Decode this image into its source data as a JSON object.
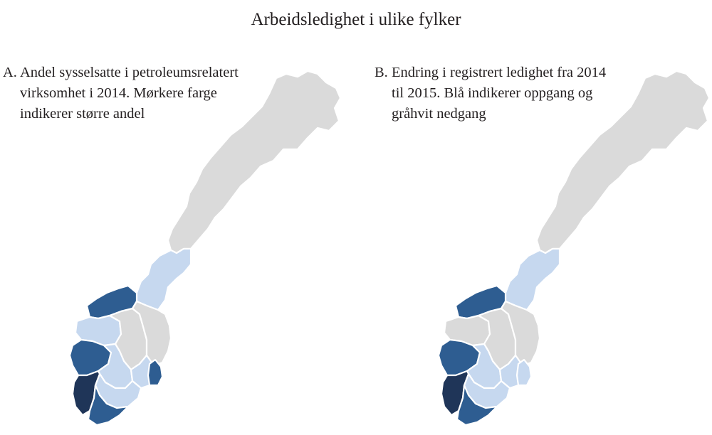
{
  "title": "Arbeidsledighet i ulike fylker",
  "colors": {
    "grey": "#dadada",
    "light": "#c6d8ef",
    "dark": "#2e5d91",
    "darkest": "#1f3558"
  },
  "panels": [
    {
      "letter": "A.",
      "caption_lines": [
        "Andel sysselsatte i petroleumsrelatert",
        "virksomhet i 2014. Mørkere farge",
        "indikerer større andel"
      ],
      "county_colors": {
        "north": "grey",
        "trondelag": "light",
        "more": "dark",
        "hedmark": "grey",
        "oppland": "grey",
        "sognefjordane": "light",
        "hordaland": "dark",
        "buskerud": "light",
        "oslo": "light",
        "ostfold": "dark",
        "telemark": "light",
        "rogaland": "darkest",
        "agder": "dark"
      }
    },
    {
      "letter": "B.",
      "caption_lines": [
        "Endring i registrert ledighet fra 2014",
        "til 2015. Blå indikerer oppgang og",
        "gråhvit nedgang"
      ],
      "county_colors": {
        "north": "grey",
        "trondelag": "light",
        "more": "dark",
        "hedmark": "grey",
        "oppland": "grey",
        "sognefjordane": "grey",
        "hordaland": "dark",
        "buskerud": "light",
        "oslo": "light",
        "ostfold": "light",
        "telemark": "light",
        "rogaland": "darkest",
        "agder": "dark"
      }
    }
  ]
}
